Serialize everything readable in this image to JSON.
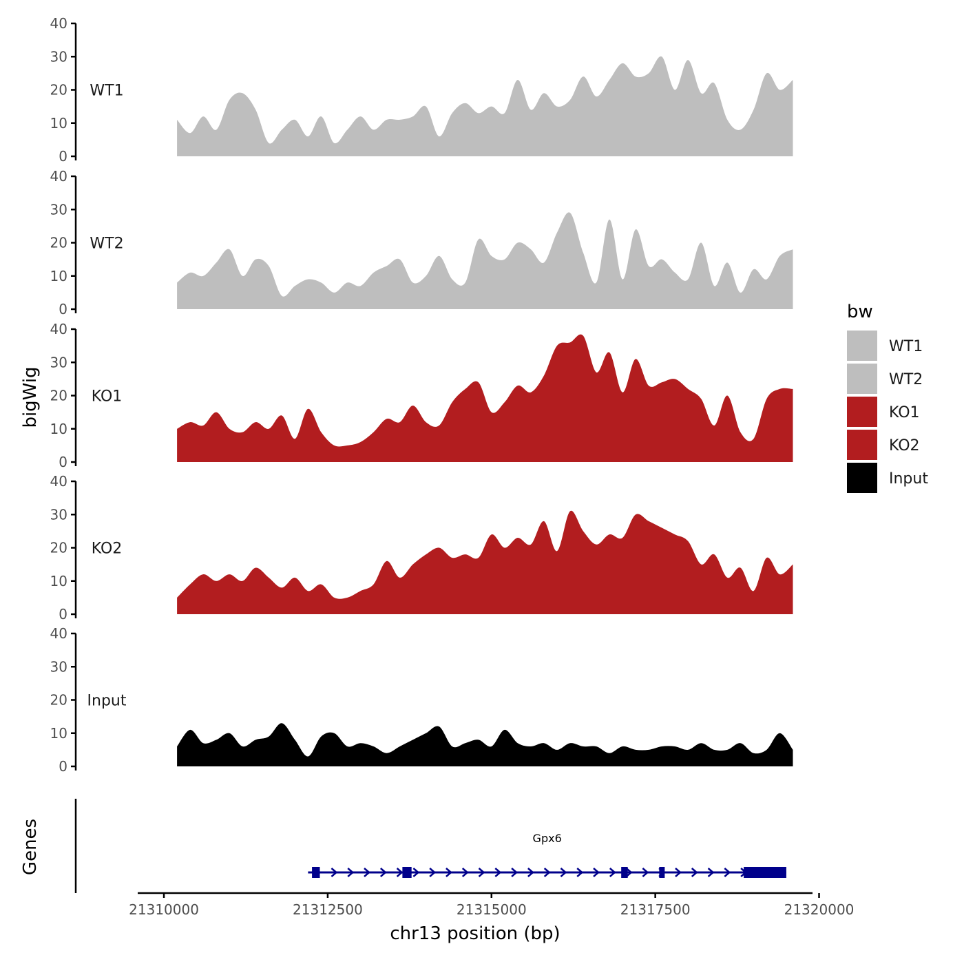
{
  "chart_data": {
    "type": "area",
    "title": "",
    "xlabel": "chr13 position (bp)",
    "ylabel": "bigWig",
    "genes_ylabel": "Genes",
    "xlim": [
      21309600,
      21319900
    ],
    "ylim": [
      0,
      40
    ],
    "x_ticks": [
      21310000,
      21312500,
      21315000,
      21317500,
      21320000
    ],
    "x_tick_labels": [
      "21310000",
      "21312500",
      "21315000",
      "21317500",
      "21320000"
    ],
    "y_ticks": [
      0,
      10,
      20,
      30,
      40
    ],
    "y_tick_labels": [
      "0",
      "10",
      "20",
      "30",
      "40"
    ],
    "legend": {
      "title": "bw",
      "position": "right",
      "entries": [
        "WT1",
        "WT2",
        "KO1",
        "KO2",
        "Input"
      ]
    },
    "x_start": 21310200,
    "x_step": 200,
    "series": [
      {
        "name": "WT1",
        "color": "#bebebe",
        "values": [
          11,
          7,
          12,
          8,
          17,
          19,
          14,
          4,
          8,
          11,
          6,
          12,
          4,
          8,
          12,
          8,
          11,
          11,
          12,
          15,
          6,
          13,
          16,
          13,
          15,
          13,
          23,
          14,
          19,
          15,
          17,
          24,
          18,
          23,
          28,
          24,
          25,
          30,
          20,
          29,
          19,
          22,
          11,
          8,
          14,
          25,
          20,
          23
        ]
      },
      {
        "name": "WT2",
        "color": "#bebebe",
        "values": [
          8,
          11,
          10,
          14,
          18,
          10,
          15,
          13,
          4,
          7,
          9,
          8,
          5,
          8,
          7,
          11,
          13,
          15,
          8,
          10,
          16,
          9,
          8,
          21,
          16,
          15,
          20,
          18,
          14,
          23,
          29,
          17,
          8,
          27,
          9,
          24,
          13,
          15,
          11,
          9,
          20,
          7,
          14,
          5,
          12,
          9,
          16,
          18
        ]
      },
      {
        "name": "KO1",
        "color": "#b21d1f",
        "values": [
          10,
          12,
          11,
          15,
          10,
          9,
          12,
          10,
          14,
          7,
          16,
          9,
          5,
          5,
          6,
          9,
          13,
          12,
          17,
          12,
          11,
          18,
          22,
          24,
          15,
          18,
          23,
          21,
          26,
          35,
          36,
          38,
          27,
          33,
          21,
          31,
          23,
          24,
          25,
          22,
          19,
          11,
          20,
          9,
          7,
          19,
          22,
          22
        ]
      },
      {
        "name": "KO2",
        "color": "#b21d1f",
        "values": [
          5,
          9,
          12,
          10,
          12,
          10,
          14,
          11,
          8,
          11,
          7,
          9,
          5,
          5,
          7,
          9,
          16,
          11,
          15,
          18,
          20,
          17,
          18,
          17,
          24,
          20,
          23,
          21,
          28,
          19,
          31,
          25,
          21,
          24,
          23,
          30,
          28,
          26,
          24,
          22,
          15,
          18,
          11,
          14,
          7,
          17,
          12,
          15
        ]
      },
      {
        "name": "Input",
        "color": "#000000",
        "values": [
          6,
          11,
          7,
          8,
          10,
          6,
          8,
          9,
          13,
          8,
          3,
          9,
          10,
          6,
          7,
          6,
          4,
          6,
          8,
          10,
          12,
          6,
          7,
          8,
          6,
          11,
          7,
          6,
          7,
          5,
          7,
          6,
          6,
          4,
          6,
          5,
          5,
          6,
          6,
          5,
          7,
          5,
          5,
          7,
          4,
          5,
          10,
          5
        ]
      }
    ],
    "gene_track": {
      "name": "Gpx6",
      "color": "#00008b",
      "start": 21312200,
      "end": 21319500,
      "strand": "+",
      "exons": [
        [
          21312260,
          21312380
        ],
        [
          21313640,
          21313780
        ],
        [
          21316980,
          21317080
        ],
        [
          21317560,
          21317640
        ],
        [
          21318850,
          21319500
        ]
      ]
    }
  }
}
